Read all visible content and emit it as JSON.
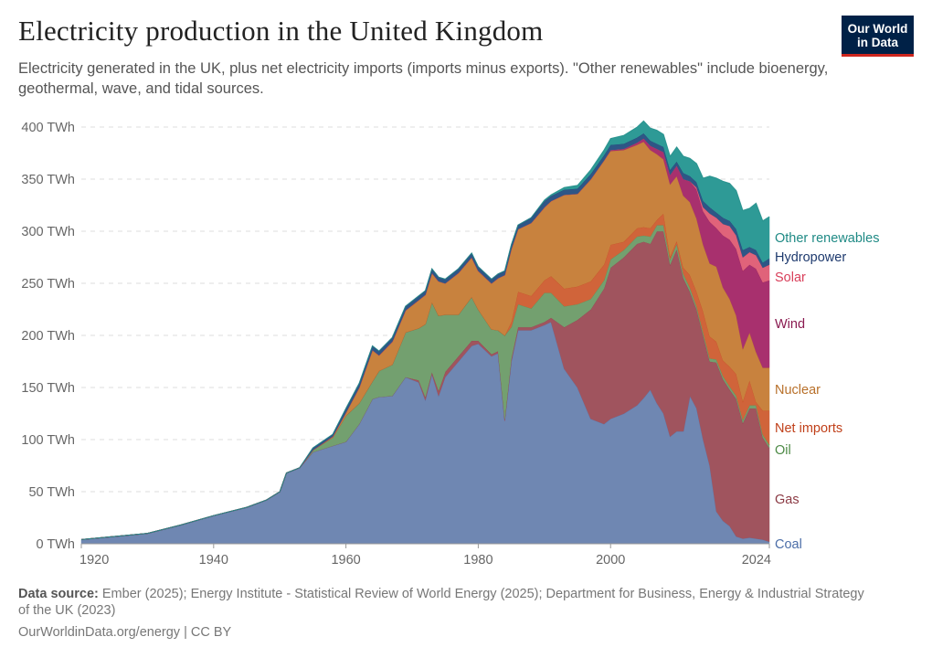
{
  "header": {
    "title": "Electricity production in the United Kingdom",
    "subtitle": "Electricity generated in the UK, plus net electricity imports (imports minus exports). \"Other renewables\" include bioenergy, geothermal, wave, and tidal sources.",
    "logo_text": "Our World in Data"
  },
  "footer": {
    "source_label": "Data source:",
    "source_text": "Ember (2025); Energy Institute - Statistical Review of World Energy (2025); Department for Business, Energy & Industrial Strategy of the UK (2023)",
    "url_text": "OurWorldinData.org/energy | CC BY"
  },
  "chart_data": {
    "type": "area",
    "stacked": true,
    "title": "Electricity production in the United Kingdom",
    "ylabel": "TWh",
    "ylim": [
      0,
      400
    ],
    "xlim": [
      1920,
      2024
    ],
    "yticks": [
      "0 TWh",
      "50 TWh",
      "100 TWh",
      "150 TWh",
      "200 TWh",
      "250 TWh",
      "300 TWh",
      "350 TWh",
      "400 TWh"
    ],
    "ytick_values": [
      0,
      50,
      100,
      150,
      200,
      250,
      300,
      350,
      400
    ],
    "xticks": [
      "1920",
      "1940",
      "1960",
      "1980",
      "2000",
      "2024"
    ],
    "xtick_values": [
      1920,
      1940,
      1960,
      1980,
      2000,
      2024
    ],
    "grid": true,
    "legend_placement": "right (inline labels)",
    "x": [
      1920,
      1925,
      1930,
      1935,
      1940,
      1945,
      1948,
      1950,
      1951,
      1953,
      1955,
      1958,
      1960,
      1962,
      1964,
      1965,
      1967,
      1969,
      1971,
      1972,
      1973,
      1974,
      1975,
      1977,
      1979,
      1980,
      1982,
      1983,
      1984,
      1985,
      1986,
      1988,
      1990,
      1991,
      1993,
      1995,
      1997,
      1999,
      2000,
      2002,
      2004,
      2005,
      2006,
      2007,
      2008,
      2009,
      2010,
      2011,
      2012,
      2013,
      2014,
      2015,
      2016,
      2017,
      2018,
      2019,
      2020,
      2021,
      2022,
      2023,
      2024
    ],
    "series": [
      {
        "name": "Coal",
        "color": "#6f87b2",
        "label_color": "#4c6ea8",
        "values": [
          4,
          7,
          10,
          18,
          27,
          35,
          42,
          50,
          68,
          73,
          88,
          94,
          98,
          115,
          139,
          141,
          142,
          160,
          155,
          138,
          163,
          142,
          160,
          175,
          190,
          192,
          180,
          183,
          118,
          175,
          205,
          205,
          210,
          213,
          168,
          150,
          120,
          115,
          120,
          125,
          133,
          140,
          148,
          135,
          125,
          103,
          108,
          108,
          142,
          130,
          100,
          75,
          31,
          22,
          17,
          7,
          5,
          6,
          5,
          4,
          2
        ]
      },
      {
        "name": "Gas",
        "color": "#a0545e",
        "label_color": "#8b3a44",
        "values": [
          0,
          0,
          0,
          0,
          0,
          0,
          0,
          0,
          0,
          0,
          0,
          0,
          0,
          0,
          0,
          0,
          0,
          0,
          2,
          3,
          2,
          5,
          5,
          5,
          5,
          3,
          2,
          2,
          2,
          3,
          3,
          3,
          3,
          4,
          40,
          65,
          105,
          130,
          145,
          150,
          155,
          150,
          140,
          165,
          175,
          165,
          175,
          147,
          100,
          95,
          100,
          100,
          143,
          136,
          131,
          132,
          111,
          124,
          125,
          98,
          90
        ]
      },
      {
        "name": "Oil",
        "color": "#73a06f",
        "label_color": "#4d8a46",
        "values": [
          0,
          0,
          0,
          0,
          0,
          0,
          0,
          0,
          0,
          0,
          2,
          8,
          25,
          20,
          17,
          25,
          30,
          43,
          50,
          70,
          67,
          72,
          55,
          40,
          42,
          30,
          24,
          20,
          80,
          30,
          22,
          18,
          28,
          24,
          20,
          15,
          10,
          8,
          8,
          7,
          7,
          6,
          7,
          6,
          6,
          5,
          5,
          4,
          4,
          3,
          3,
          3,
          3,
          3,
          3,
          3,
          3,
          3,
          3,
          3,
          3
        ]
      },
      {
        "name": "Net imports",
        "color": "#d0643a",
        "label_color": "#c0401a",
        "values": [
          0,
          0,
          0,
          0,
          0,
          0,
          0,
          0,
          0,
          0,
          0,
          0,
          0,
          0,
          0,
          0,
          0,
          0,
          0,
          0,
          0,
          0,
          0,
          0,
          0,
          0,
          0,
          0,
          0,
          5,
          12,
          12,
          12,
          16,
          17,
          17,
          17,
          15,
          14,
          8,
          8,
          8,
          8,
          5,
          11,
          3,
          3,
          6,
          12,
          14,
          20,
          21,
          17,
          15,
          19,
          21,
          18,
          24,
          3,
          23,
          33
        ]
      },
      {
        "name": "Nuclear",
        "color": "#c8823e",
        "label_color": "#b8702a",
        "values": [
          0,
          0,
          0,
          0,
          0,
          0,
          0,
          0,
          0,
          0,
          0,
          1,
          3,
          15,
          30,
          15,
          22,
          21,
          27,
          28,
          28,
          33,
          30,
          40,
          38,
          37,
          44,
          50,
          58,
          70,
          60,
          70,
          70,
          72,
          90,
          89,
          98,
          100,
          90,
          88,
          80,
          82,
          75,
          63,
          52,
          69,
          62,
          69,
          70,
          70,
          64,
          70,
          72,
          70,
          65,
          56,
          50,
          46,
          48,
          41,
          41
        ]
      },
      {
        "name": "Wind",
        "color": "#a8306e",
        "label_color": "#8a1a50",
        "values": [
          0,
          0,
          0,
          0,
          0,
          0,
          0,
          0,
          0,
          0,
          0,
          0,
          0,
          0,
          0,
          0,
          0,
          0,
          0,
          0,
          0,
          0,
          0,
          0,
          0,
          0,
          0,
          0,
          0,
          0,
          0,
          0,
          0,
          0,
          0,
          0,
          0,
          0,
          1,
          1,
          2,
          3,
          4,
          5,
          7,
          9,
          10,
          16,
          20,
          28,
          32,
          40,
          37,
          50,
          57,
          64,
          75,
          65,
          80,
          82,
          84
        ]
      },
      {
        "name": "Solar",
        "color": "#e0637a",
        "label_color": "#d9405b",
        "values": [
          0,
          0,
          0,
          0,
          0,
          0,
          0,
          0,
          0,
          0,
          0,
          0,
          0,
          0,
          0,
          0,
          0,
          0,
          0,
          0,
          0,
          0,
          0,
          0,
          0,
          0,
          0,
          0,
          0,
          0,
          0,
          0,
          0,
          0,
          0,
          0,
          0,
          0,
          0,
          0,
          0,
          0,
          0,
          0,
          0,
          0,
          0,
          0,
          0,
          2,
          4,
          8,
          10,
          11,
          13,
          13,
          13,
          12,
          13,
          14,
          15
        ]
      },
      {
        "name": "Hydropower",
        "color": "#2e5686",
        "label_color": "#1e3a6e",
        "values": [
          0,
          0,
          0,
          0,
          0,
          0,
          0,
          0,
          0,
          0,
          2,
          2,
          4,
          4,
          4,
          4,
          4,
          4,
          4,
          4,
          4,
          4,
          4,
          4,
          4,
          4,
          4,
          4,
          4,
          4,
          4,
          5,
          6,
          5,
          5,
          5,
          5,
          5,
          5,
          5,
          5,
          5,
          5,
          5,
          5,
          5,
          4,
          6,
          5,
          5,
          6,
          6,
          5,
          6,
          5,
          6,
          7,
          5,
          5,
          5,
          6
        ]
      },
      {
        "name": "Other renewables",
        "color": "#2e9a96",
        "label_color": "#1f8a85",
        "values": [
          0,
          0,
          0,
          0,
          0,
          0,
          0,
          0,
          0,
          0,
          0,
          0,
          0,
          0,
          0,
          0,
          0,
          0,
          0,
          0,
          0,
          0,
          0,
          0,
          0,
          0,
          0,
          0,
          0,
          0,
          0,
          0,
          1,
          1,
          2,
          3,
          4,
          5,
          6,
          8,
          10,
          12,
          12,
          13,
          12,
          13,
          14,
          16,
          17,
          18,
          22,
          30,
          33,
          35,
          36,
          37,
          38,
          37,
          45,
          40,
          40
        ]
      }
    ]
  }
}
